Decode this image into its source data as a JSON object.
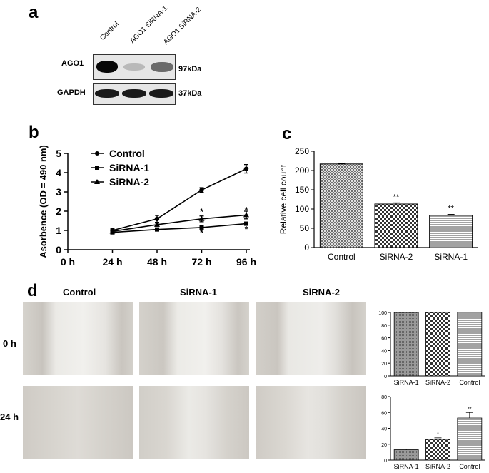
{
  "panel_a": {
    "letter": "a",
    "lanes": [
      "Control",
      "AGO1 SiRNA-1",
      "AGO1 SiRNA-2"
    ],
    "rows": [
      {
        "protein": "AGO1",
        "size": "97kDa",
        "band_intensity": [
          1.0,
          0.15,
          0.45
        ]
      },
      {
        "protein": "GAPDH",
        "size": "37kDa",
        "band_intensity": [
          1.0,
          1.0,
          1.0
        ]
      }
    ]
  },
  "panel_b": {
    "letter": "b",
    "chart_data": {
      "type": "line",
      "x": [
        "24 h",
        "48 h",
        "72 h",
        "96 h"
      ],
      "x_ticks": [
        "0 h",
        "24 h",
        "48 h",
        "72 h",
        "96 h"
      ],
      "ylabel": "Asorbence (OD = 490 nm)",
      "ylim": [
        0,
        5
      ],
      "y_ticks": [
        "0",
        "1",
        "2",
        "3",
        "4",
        "5"
      ],
      "legend_position": "top-left",
      "series": [
        {
          "name": "Control",
          "marker": "circle",
          "values": [
            1.0,
            1.6,
            3.1,
            4.2
          ],
          "errors": [
            0.08,
            0.18,
            0.12,
            0.22
          ]
        },
        {
          "name": "SiRNA-1",
          "marker": "square",
          "values": [
            0.9,
            1.05,
            1.15,
            1.35
          ],
          "errors": [
            0.05,
            0.05,
            0.06,
            0.06
          ]
        },
        {
          "name": "SiRNA-2",
          "marker": "triangle",
          "values": [
            0.95,
            1.3,
            1.6,
            1.8
          ],
          "errors": [
            0.05,
            0.08,
            0.15,
            0.2
          ]
        }
      ],
      "annotations": [
        {
          "x": "72 h",
          "y": 2.0,
          "text": "*"
        },
        {
          "x": "96 h",
          "y": 2.1,
          "text": "*"
        },
        {
          "x": "72 h",
          "y": 0.9,
          "text": "*"
        },
        {
          "x": "96 h",
          "y": 1.1,
          "text": "*"
        }
      ]
    }
  },
  "panel_c": {
    "letter": "c",
    "chart_data": {
      "type": "bar",
      "categories": [
        "Control",
        "SiRNA-2",
        "SiRNA-1"
      ],
      "values": [
        217,
        113,
        84
      ],
      "errors": [
        1,
        3,
        2
      ],
      "ylabel": "Relative cell count",
      "ylim": [
        0,
        250
      ],
      "y_ticks": [
        "0",
        "50",
        "100",
        "150",
        "200",
        "250"
      ],
      "annotations": [
        "",
        "**",
        "**"
      ]
    }
  },
  "panel_d": {
    "letter": "d",
    "column_headers": [
      "Control",
      "SiRNA-1",
      "SiRNA-2"
    ],
    "row_headers": [
      "0 h",
      "24 h"
    ],
    "chart_top": {
      "type": "bar",
      "categories": [
        "SiRNA-1",
        "SiRNA-2",
        "Control"
      ],
      "values": [
        100,
        100,
        100
      ],
      "ylim": [
        0,
        100
      ],
      "y_ticks": [
        "0",
        "20",
        "40",
        "60",
        "80",
        "100"
      ]
    },
    "chart_bottom": {
      "type": "bar",
      "categories": [
        "SiRNA-1",
        "SiRNA-2",
        "Control"
      ],
      "values": [
        13,
        26,
        53
      ],
      "errors": [
        1,
        2,
        7
      ],
      "ylim": [
        0,
        80
      ],
      "y_ticks": [
        "0",
        "20",
        "40",
        "60",
        "80"
      ],
      "annotations": [
        "",
        "*",
        "**"
      ]
    }
  }
}
